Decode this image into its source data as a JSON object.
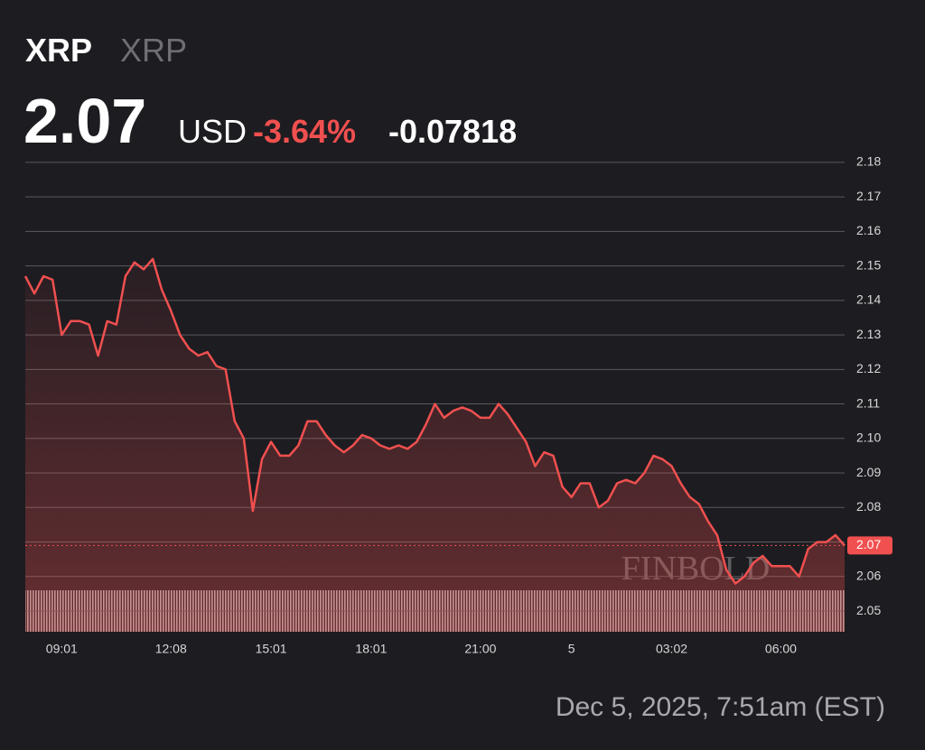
{
  "chart_data": {
    "type": "line",
    "title": "XRP",
    "subtitle": "XRP",
    "price": "2.07",
    "currency": "USD",
    "change_percent": "-3.64%",
    "change": "-0.07818",
    "timestamp": "Dec 5, 2025, 7:51am (EST)",
    "watermark": "FINBOLD",
    "color": "#f0504f",
    "last_value": {
      "value": 2.069,
      "label": "2.07"
    },
    "categories": [
      null,
      null,
      null,
      null,
      "09:01",
      null,
      null,
      null,
      null,
      null,
      null,
      null,
      null,
      null,
      null,
      null,
      "12:08",
      null,
      null,
      null,
      null,
      null,
      null,
      null,
      null,
      null,
      null,
      "15:01",
      null,
      null,
      null,
      null,
      null,
      null,
      null,
      null,
      null,
      null,
      "18:01",
      null,
      null,
      null,
      null,
      null,
      null,
      null,
      null,
      null,
      null,
      null,
      "21:00",
      null,
      null,
      null,
      null,
      null,
      null,
      null,
      null,
      null,
      "5",
      null,
      null,
      null,
      null,
      null,
      null,
      null,
      null,
      null,
      null,
      "03:02",
      null,
      null,
      null,
      null,
      null,
      null,
      null,
      null,
      null,
      null,
      null,
      "06:00",
      null,
      null,
      null,
      null,
      null,
      null,
      null
    ],
    "values": [
      2.147,
      2.142,
      2.147,
      2.146,
      2.13,
      2.134,
      2.134,
      2.133,
      2.124,
      2.134,
      2.133,
      2.147,
      2.151,
      2.149,
      2.152,
      2.143,
      2.137,
      2.13,
      2.126,
      2.124,
      2.125,
      2.121,
      2.12,
      2.105,
      2.1,
      2.079,
      2.094,
      2.099,
      2.095,
      2.095,
      2.098,
      2.105,
      2.105,
      2.101,
      2.098,
      2.096,
      2.098,
      2.101,
      2.1,
      2.098,
      2.097,
      2.098,
      2.097,
      2.099,
      2.104,
      2.11,
      2.106,
      2.108,
      2.109,
      2.108,
      2.106,
      2.106,
      2.11,
      2.107,
      2.103,
      2.099,
      2.092,
      2.096,
      2.095,
      2.086,
      2.083,
      2.087,
      2.087,
      2.08,
      2.082,
      2.087,
      2.088,
      2.087,
      2.09,
      2.095,
      2.094,
      2.092,
      2.087,
      2.083,
      2.081,
      2.076,
      2.072,
      2.062,
      2.058,
      2.06,
      2.064,
      2.066,
      2.063,
      2.063,
      2.063,
      2.06,
      2.068,
      2.07,
      2.07,
      2.072,
      2.069
    ],
    "ylim": [
      2.044,
      2.181
    ],
    "yticks": [
      2.05,
      2.06,
      2.07,
      2.08,
      2.09,
      {
        "value": 2.1,
        "label": "2.10"
      },
      2.11,
      2.12,
      2.13,
      2.14,
      2.15,
      2.16,
      2.17,
      2.18
    ],
    "grid": true
  }
}
